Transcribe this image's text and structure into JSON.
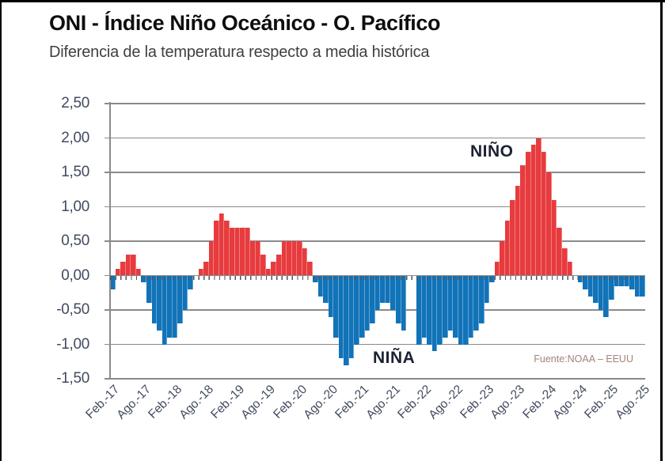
{
  "page": {
    "background": "#ffffff",
    "frame_color": "#000000"
  },
  "header": {
    "title": "ONI - Índice Niño Oceánico - O. Pacífico",
    "subtitle": "Diferencia de la temperatura respecto a media histórica"
  },
  "chart_data": {
    "type": "bar",
    "title": "ONI - Índice Niño Oceánico - O. Pacífico",
    "subtitle": "Diferencia de la temperatura respecto a media histórica",
    "period": "monthly values from Feb-2017 to Ago-2025, one bar per month",
    "values": [
      -0.2,
      0.1,
      0.2,
      0.3,
      0.3,
      0.1,
      -0.1,
      -0.4,
      -0.7,
      -0.8,
      -1.0,
      -0.9,
      -0.9,
      -0.7,
      -0.5,
      -0.2,
      0.0,
      0.1,
      0.2,
      0.5,
      0.8,
      0.9,
      0.8,
      0.7,
      0.7,
      0.7,
      0.7,
      0.5,
      0.5,
      0.3,
      0.1,
      0.2,
      0.3,
      0.5,
      0.5,
      0.5,
      0.5,
      0.4,
      0.2,
      -0.1,
      -0.3,
      -0.4,
      -0.6,
      -0.9,
      -1.2,
      -1.3,
      -1.2,
      -1.0,
      -0.9,
      -0.8,
      -0.7,
      -0.5,
      -0.4,
      -0.4,
      -0.5,
      -0.7,
      -0.8,
      null,
      null,
      -1.0,
      -0.9,
      -1.0,
      -1.1,
      -1.0,
      -0.9,
      -0.8,
      -0.9,
      -1.0,
      -1.0,
      -0.9,
      -0.8,
      -0.7,
      -0.4,
      -0.1,
      0.2,
      0.5,
      0.8,
      1.1,
      1.3,
      1.6,
      1.8,
      1.9,
      2.0,
      1.8,
      1.5,
      1.1,
      0.7,
      0.4,
      0.2,
      0.0,
      -0.1,
      -0.2,
      -0.3,
      -0.4,
      -0.5,
      -0.6,
      -0.35,
      -0.15,
      -0.15,
      -0.15,
      -0.2,
      -0.3,
      -0.3
    ],
    "x_tick_labels": [
      "Feb.-17",
      "Ago.-17",
      "Feb.-18",
      "Ago.-18",
      "Feb.-19",
      "Ago.-19",
      "Feb.-20",
      "Ago.-20",
      "Feb.-21",
      "Ago.-21",
      "Feb.-22",
      "Ago.-22",
      "Feb.-23",
      "Ago.-23",
      "Feb.-24",
      "Ago.-24",
      "Feb.-25",
      "Ago.-25"
    ],
    "x_tick_every": 6,
    "y_tick_labels": [
      "2,50",
      "2,00",
      "1,50",
      "1,00",
      "0,50",
      "0,00",
      "-0,50",
      "-1,00",
      "-1,50"
    ],
    "y_tick_values": [
      2.5,
      2.0,
      1.5,
      1.0,
      0.5,
      0.0,
      -0.5,
      -1.0,
      -1.5
    ],
    "ylim": [
      -1.5,
      2.5
    ],
    "grid": "horizontal gridlines every 0.5",
    "legend": "none",
    "annotations": {
      "nino": "NIÑO",
      "nina": "NIÑA"
    },
    "source": "Fuente:NOAA – EEUU",
    "colors": {
      "positive": "#e73b3e",
      "negative": "#1173b8",
      "grid": "#8a8a8a",
      "tick_text": "#414a5e"
    }
  }
}
